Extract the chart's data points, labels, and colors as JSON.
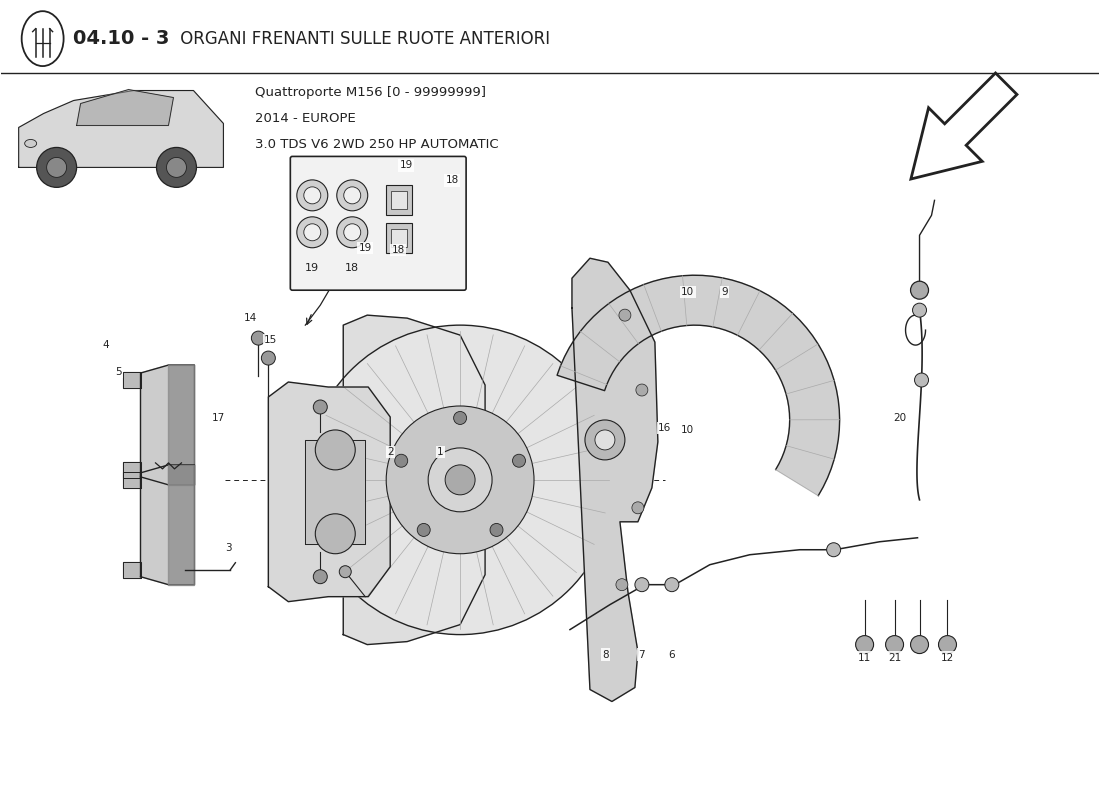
{
  "title_bold": "04.10 - 3",
  "title_regular": " ORGANI FRENANTI SULLE RUOTE ANTERIORI",
  "subtitle_line1": "Quattroporte M156 [0 - 99999999]",
  "subtitle_line2": "2014 - EUROPE",
  "subtitle_line3": "3.0 TDS V6 2WD 250 HP AUTOMATIC",
  "bg_color": "#FFFFFF",
  "line_color": "#222222"
}
